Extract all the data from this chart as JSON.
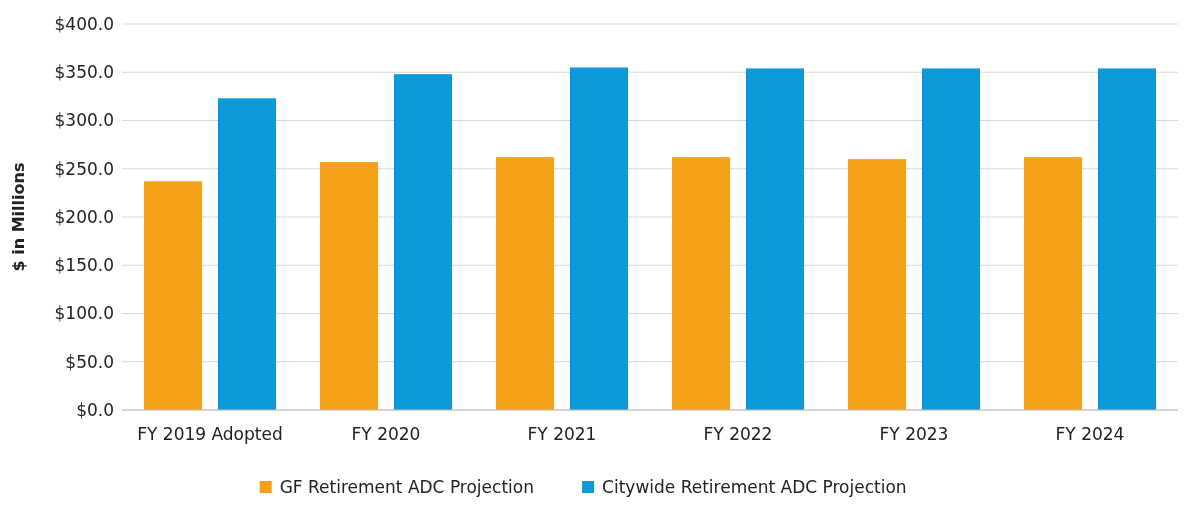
{
  "chart_data": {
    "type": "bar",
    "ylabel": "$ in Millions",
    "categories": [
      "FY 2019 Adopted",
      "FY 2020",
      "FY 2021",
      "FY 2022",
      "FY 2023",
      "FY 2024"
    ],
    "series": [
      {
        "name": "GF Retirement ADC Projection",
        "color": "#f7a11a",
        "values": [
          237,
          257,
          262,
          262,
          260,
          262
        ]
      },
      {
        "name": "Citywide Retirement ADC Projection",
        "color": "#0c9ad8",
        "values": [
          323,
          348,
          355,
          354,
          354,
          354
        ]
      }
    ],
    "ylim": [
      0,
      400
    ],
    "yticks": [
      {
        "value": 0,
        "label": "$0.0"
      },
      {
        "value": 50,
        "label": "$50.0"
      },
      {
        "value": 100,
        "label": "$100.0"
      },
      {
        "value": 150,
        "label": "$150.0"
      },
      {
        "value": 200,
        "label": "$200.0"
      },
      {
        "value": 250,
        "label": "$250.0"
      },
      {
        "value": 300,
        "label": "$300.0"
      },
      {
        "value": 350,
        "label": "$350.0"
      },
      {
        "value": 400,
        "label": "$400.0"
      }
    ],
    "grid": "y",
    "legend": "bottom"
  }
}
